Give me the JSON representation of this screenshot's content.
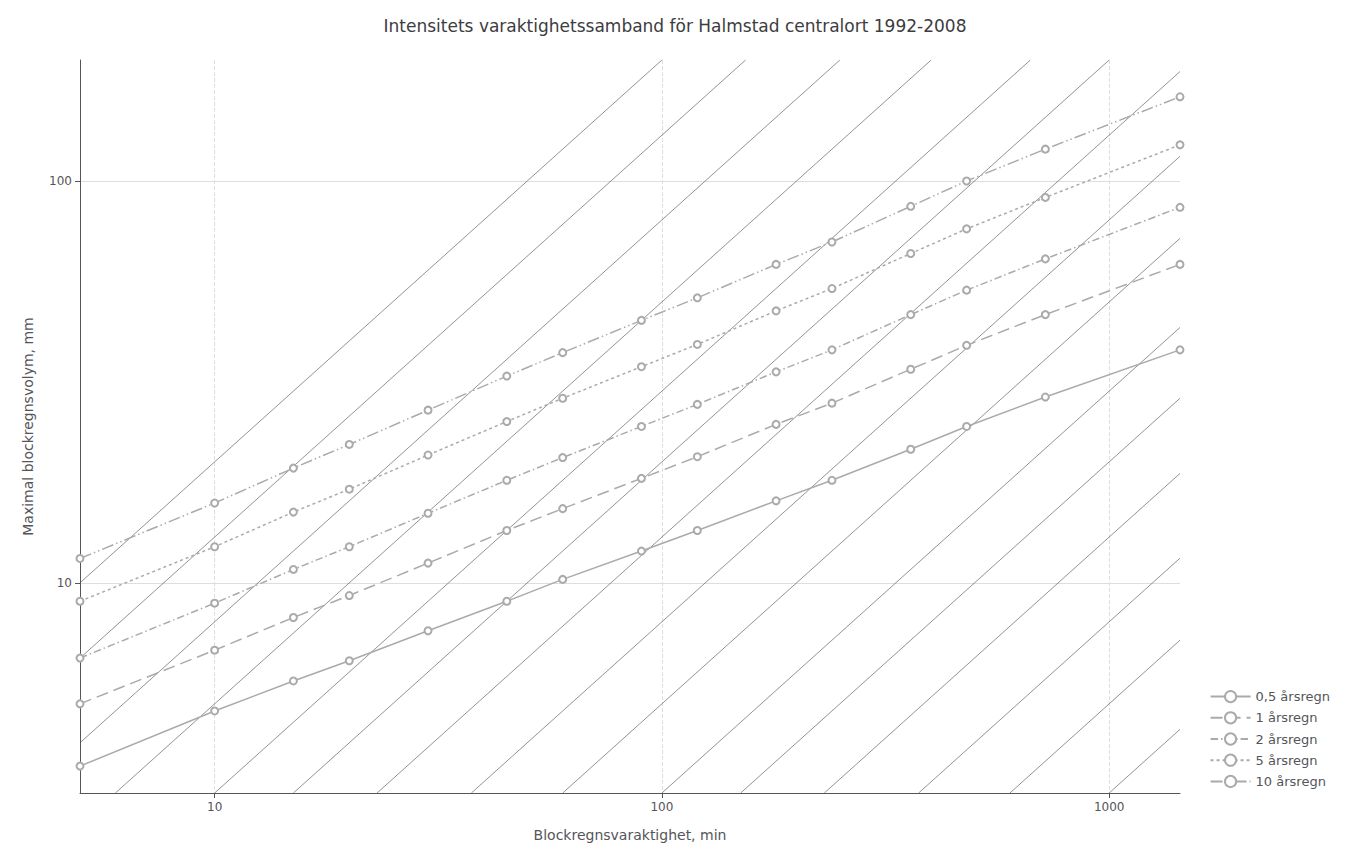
{
  "chart_data": {
    "type": "line",
    "title": "Intensitets varaktighetssamband för Halmstad centralort 1992-2008",
    "xlabel": "Blockregnsvaraktighet, min",
    "ylabel": "Maximal blockregnsvolym, mm",
    "x": [
      5,
      10,
      15,
      20,
      30,
      45,
      60,
      90,
      120,
      180,
      240,
      360,
      480,
      720,
      1440
    ],
    "series": [
      {
        "name": "0,5 årsregn",
        "color": "#aaaaaa",
        "marker": "o",
        "line_style": "solid",
        "values": [
          3.5,
          4.8,
          5.7,
          6.4,
          7.6,
          9.0,
          10.2,
          12.0,
          13.5,
          16.0,
          18.0,
          21.5,
          24.5,
          29.0,
          38.0
        ]
      },
      {
        "name": "1 årsregn",
        "color": "#aaaaaa",
        "marker": "o",
        "line_style": "dashed",
        "values": [
          5.0,
          6.8,
          8.2,
          9.3,
          11.2,
          13.5,
          15.3,
          18.2,
          20.6,
          24.8,
          28.0,
          34.0,
          39.0,
          46.5,
          62.0
        ]
      },
      {
        "name": "2 årsregn",
        "color": "#aaaaaa",
        "marker": "o",
        "line_style": "dashdot",
        "values": [
          6.5,
          8.9,
          10.8,
          12.3,
          14.9,
          18.0,
          20.5,
          24.5,
          27.8,
          33.5,
          38.0,
          46.5,
          53.5,
          64.0,
          86.0
        ]
      },
      {
        "name": "5 årsregn",
        "color": "#aaaaaa",
        "marker": "o",
        "line_style": "dotted",
        "values": [
          9.0,
          12.3,
          15.0,
          17.1,
          20.8,
          25.2,
          28.8,
          34.5,
          39.2,
          47.5,
          54.0,
          66.0,
          76.0,
          91.0,
          123.0
        ]
      },
      {
        "name": "10 årsregn",
        "color": "#aaaaaa",
        "marker": "o",
        "line_style": "dashdotdot",
        "values": [
          11.5,
          15.8,
          19.3,
          22.1,
          26.9,
          32.7,
          37.4,
          45.0,
          51.2,
          62.0,
          70.5,
          86.5,
          100.0,
          120.0,
          162.0
        ]
      }
    ],
    "log": true,
    "xlim": [
      5,
      1440
    ],
    "ylim": [
      3,
      200
    ],
    "xticks": [
      10,
      100,
      1000
    ],
    "yticks": [
      10,
      100
    ],
    "grid": true,
    "legend": "lower right",
    "reference_lines": {
      "color": "#555555",
      "lines": [
        {
          "x": [
            1000,
            1440
          ],
          "y": [
            3,
            4.32
          ]
        },
        {
          "x": [
            600,
            1440
          ],
          "y": [
            3,
            7.2
          ]
        },
        {
          "x": [
            375,
            1440
          ],
          "y": [
            3,
            11.52
          ]
        },
        {
          "x": [
            230.76923076923077,
            1440
          ],
          "y": [
            3,
            18.72
          ]
        },
        {
          "x": [
            150,
            1440
          ],
          "y": [
            3,
            28.8
          ]
        },
        {
          "x": [
            100,
            1440
          ],
          "y": [
            3,
            43.2
          ]
        },
        {
          "x": [
            60,
            1440
          ],
          "y": [
            3,
            72
          ]
        },
        {
          "x": [
            37.5,
            1440
          ],
          "y": [
            3,
            115.2
          ]
        },
        {
          "x": [
            23.076923076923077,
            1440
          ],
          "y": [
            3,
            187.2
          ]
        },
        {
          "x": [
            15,
            1000
          ],
          "y": [
            3,
            200
          ]
        },
        {
          "x": [
            10,
            666.6666666666666
          ],
          "y": [
            3,
            200
          ]
        },
        {
          "x": [
            6,
            400
          ],
          "y": [
            3,
            200
          ]
        },
        {
          "x": [
            5,
            250
          ],
          "y": [
            4,
            200
          ]
        },
        {
          "x": [
            5,
            153.84615384615384
          ],
          "y": [
            6.5,
            200
          ]
        },
        {
          "x": [
            5,
            100
          ],
          "y": [
            10,
            200
          ]
        }
      ]
    }
  }
}
